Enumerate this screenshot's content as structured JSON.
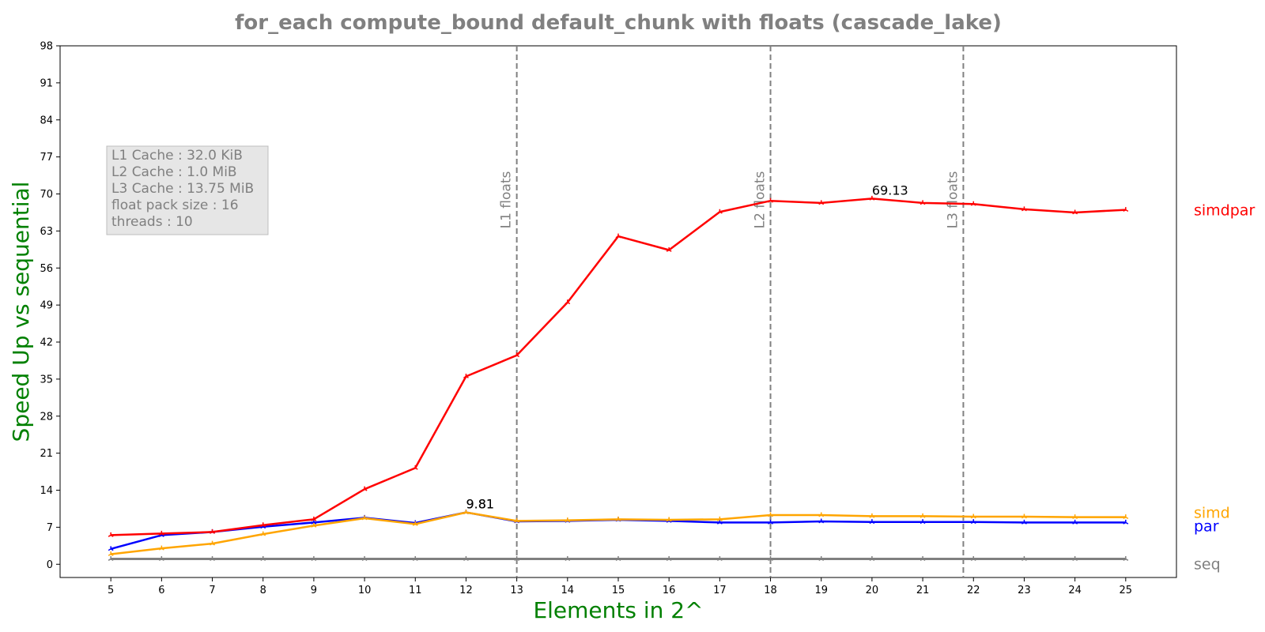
{
  "chart_data": {
    "type": "line",
    "title": "for_each compute_bound default_chunk with floats  (cascade_lake)",
    "xlabel": "Elements in 2^",
    "ylabel": "Speed Up vs sequential",
    "x": [
      5,
      6,
      7,
      8,
      9,
      10,
      11,
      12,
      13,
      14,
      15,
      16,
      17,
      18,
      19,
      20,
      21,
      22,
      23,
      24,
      25
    ],
    "xlim": [
      4,
      26
    ],
    "ylim": [
      -2.5,
      98
    ],
    "yticks": [
      0,
      7,
      14,
      21,
      28,
      35,
      42,
      49,
      56,
      63,
      70,
      77,
      84,
      91,
      98
    ],
    "grid": false,
    "series": [
      {
        "name": "seq",
        "color": "#808080",
        "values": [
          1,
          1,
          1,
          1,
          1,
          1,
          1,
          1,
          1,
          1,
          1,
          1,
          1,
          1,
          1,
          1,
          1,
          1,
          1,
          1,
          1
        ]
      },
      {
        "name": "par",
        "color": "#0000ff",
        "values": [
          2.9,
          5.5,
          6.1,
          7.1,
          7.9,
          8.8,
          7.8,
          9.81,
          8.1,
          8.2,
          8.4,
          8.2,
          7.9,
          7.9,
          8.1,
          8.0,
          8.0,
          8.0,
          7.9,
          7.9,
          7.9
        ]
      },
      {
        "name": "simd",
        "color": "#ffa500",
        "values": [
          1.9,
          3.0,
          3.9,
          5.7,
          7.3,
          8.7,
          7.6,
          9.8,
          8.2,
          8.3,
          8.5,
          8.4,
          8.5,
          9.3,
          9.3,
          9.1,
          9.1,
          9.0,
          9.0,
          8.9,
          8.9
        ]
      },
      {
        "name": "simdpar",
        "color": "#ff0000",
        "values": [
          5.5,
          5.8,
          6.1,
          7.4,
          8.5,
          14.2,
          18.2,
          35.5,
          39.5,
          49.5,
          62.0,
          59.4,
          66.6,
          68.7,
          68.3,
          69.13,
          68.3,
          68.1,
          67.1,
          66.5,
          67.0
        ]
      }
    ],
    "vlines": [
      {
        "x": 13,
        "label": "L1 floats"
      },
      {
        "x": 18,
        "label": "L2 floats"
      },
      {
        "x": 21.8,
        "label": "L3 floats"
      }
    ],
    "annotations": [
      {
        "x": 12,
        "y": 9.81,
        "text": "9.81"
      },
      {
        "x": 12,
        "y": 9.81,
        "text": "9.81"
      },
      {
        "x": 20,
        "y": 69.13,
        "text": "69.13"
      }
    ],
    "info_box": [
      "L1 Cache : 32.0 KiB",
      "L2 Cache : 1.0 MiB",
      "L3 Cache : 13.75 MiB",
      "float pack size : 16",
      "threads : 10"
    ],
    "colors": {
      "title": "#808080",
      "axis_label": "#008000",
      "vline": "#808080",
      "info_text": "#808080",
      "info_bg": "#e6e6e6"
    }
  }
}
